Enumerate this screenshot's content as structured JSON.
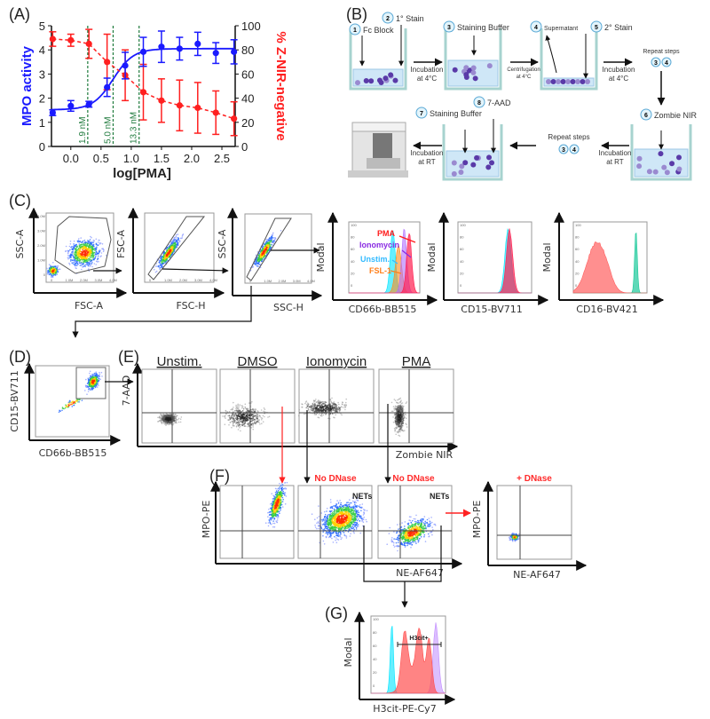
{
  "panels": {
    "A": {
      "label": "(A)"
    },
    "B": {
      "label": "(B)"
    },
    "C": {
      "label": "(C)"
    },
    "D": {
      "label": "(D)"
    },
    "E": {
      "label": "(E)"
    },
    "F": {
      "label": "(F)"
    },
    "G": {
      "label": "(G)"
    }
  },
  "chart_data": {
    "type": "line",
    "xlabel": "log[PMA]",
    "ylabel_left": "MPO activity",
    "ylabel_right": "% Z-NIR-negative",
    "xlim": [
      -0.32,
      2.72
    ],
    "ylim_left": [
      0,
      5
    ],
    "ylim_right": [
      0,
      100
    ],
    "xticks": [
      "0.0",
      "0.5",
      "1.0",
      "1.5",
      "2.0",
      "2.5"
    ],
    "yticks_left": [
      "0",
      "1",
      "2",
      "3",
      "4",
      "5"
    ],
    "yticks_right": [
      "0",
      "20",
      "40",
      "60",
      "80",
      "100"
    ],
    "x": [
      -0.3,
      0.0,
      0.3,
      0.6,
      0.9,
      1.2,
      1.5,
      1.8,
      2.1,
      2.4,
      2.7
    ],
    "series": [
      {
        "axis": "left",
        "color": "#1a1aff",
        "style": "solid-fit",
        "values": [
          1.4,
          1.68,
          1.75,
          2.45,
          3.35,
          3.92,
          4.13,
          4.05,
          4.25,
          3.87,
          3.92
        ],
        "errors": [
          0.12,
          0.22,
          0.12,
          0.38,
          0.55,
          0.6,
          0.65,
          0.47,
          0.48,
          0.43,
          0.5
        ]
      },
      {
        "axis": "right",
        "color": "#ff2020",
        "style": "dashed",
        "values": [
          89,
          88,
          85,
          70,
          59,
          45,
          38,
          34,
          32,
          28,
          23
        ],
        "errors": [
          6,
          5,
          12,
          23,
          21,
          23,
          18,
          21,
          21,
          18,
          14
        ]
      }
    ],
    "annotations": [
      {
        "x": 0.28,
        "text": "1.9 nM"
      },
      {
        "x": 0.7,
        "text": "5.0 nM"
      },
      {
        "x": 1.13,
        "text": "13.3 nM"
      }
    ],
    "annotation_color": "#1e7a3c",
    "grid": false
  },
  "protocol": {
    "steps": [
      {
        "num": "1",
        "text": "Fc Block"
      },
      {
        "num": "2",
        "text": "1° Stain"
      },
      {
        "num": "3",
        "text": "Staining Buffer"
      },
      {
        "num": "4",
        "text": "Supernatant"
      },
      {
        "num": "5",
        "text": "2° Stain"
      },
      {
        "num": "6",
        "text": "Zombie NIR"
      },
      {
        "num": "7",
        "text": "Staining Buffer"
      },
      {
        "num": "8",
        "text": "7-AAD"
      }
    ],
    "incubation_4c": [
      "Incubation",
      "at 4°C"
    ],
    "centrifugation": [
      "Centrifugation",
      "at 4°C"
    ],
    "incubation_rt": [
      "Incubation",
      "at RT"
    ],
    "repeat_steps": "Repeat steps",
    "repeat_nums": [
      "3",
      "4"
    ]
  },
  "gating": {
    "plots": [
      {
        "x": "FSC-A",
        "y": "SSC-A"
      },
      {
        "x": "FSC-H",
        "y": "FSC-A"
      },
      {
        "x": "SSC-H",
        "y": "SSC-A"
      }
    ],
    "scatter_ticks": [
      "0",
      "1.0M",
      "2.0M",
      "3.0M",
      "4.0M"
    ],
    "hist_ticks": [
      "0",
      "20",
      "40",
      "60",
      "80",
      "100"
    ],
    "histograms": [
      {
        "x": "CD66b-BB515",
        "y": "Modal"
      },
      {
        "x": "CD15-BV711",
        "y": "Modal"
      },
      {
        "x": "CD16-BV421",
        "y": "Modal"
      }
    ],
    "legend": [
      {
        "name": "PMA",
        "color": "#ff1a1a"
      },
      {
        "name": "Ionomycin",
        "color": "#8a2be2"
      },
      {
        "name": "Unstim.",
        "color": "#33bbff"
      },
      {
        "name": "FSL-1",
        "color": "#ff7f1a"
      }
    ]
  },
  "D": {
    "x": "CD66b-BB515",
    "y": "CD15-BV711"
  },
  "E": {
    "conditions": [
      "Unstim.",
      "DMSO",
      "Ionomycin",
      "PMA"
    ],
    "x": "Zombie NIR",
    "y": "7-AAD"
  },
  "F": {
    "x": "NE-AF647",
    "y": "MPO-PE",
    "no_dnase": "No DNase",
    "plus_dnase": "+ DNase",
    "nets": "NETs"
  },
  "G": {
    "x": "H3cit-PE-Cy7",
    "y": "Modal",
    "gate": "H3cit+"
  }
}
